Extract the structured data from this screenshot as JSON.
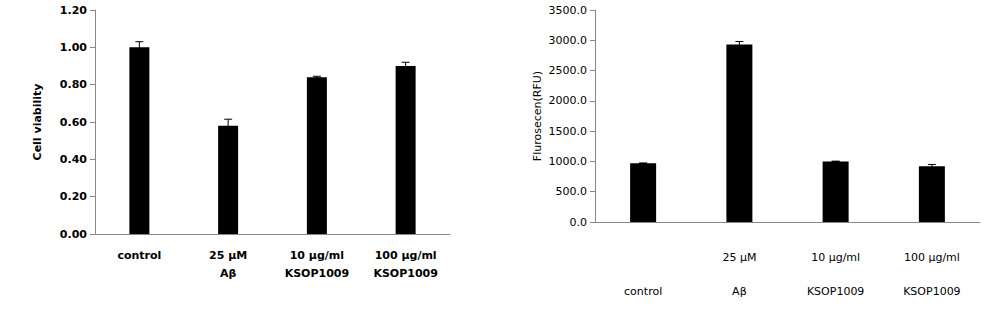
{
  "chart_data": [
    {
      "type": "bar",
      "y_label": "Cell viability",
      "categories": [
        "control",
        "25 μM\nAβ",
        "10 μg/ml\nKSOP1009",
        "100 μg/ml\nKSOP1009"
      ],
      "values": [
        1.0,
        0.58,
        0.84,
        0.9
      ],
      "errors": [
        0.03,
        0.035,
        0.005,
        0.02
      ],
      "color": "#000000",
      "ylim": [
        0,
        1.2
      ],
      "yticks": [
        {
          "value": 0,
          "label": "0.00"
        },
        {
          "value": 0.2,
          "label": "0.20"
        },
        {
          "value": 0.4,
          "label": "0.40"
        },
        {
          "value": 0.6,
          "label": "0.60"
        },
        {
          "value": 0.8,
          "label": "0.80"
        },
        {
          "value": 1.0,
          "label": "1.00"
        },
        {
          "value": 1.2,
          "label": "1.20"
        }
      ],
      "grid": false
    },
    {
      "type": "bar",
      "y_label": "Flurosecen(RFU)",
      "categories": [
        "control",
        "25 μM\nAβ",
        "10 μg/ml\nKSOP1009",
        "100 μg/ml\nKSOP1009"
      ],
      "values": [
        970,
        2930,
        1000,
        920
      ],
      "errors": [
        5,
        50,
        5,
        30
      ],
      "color": "#000000",
      "ylim": [
        0,
        3500
      ],
      "yticks": [
        {
          "value": 0,
          "label": "0.0"
        },
        {
          "value": 500,
          "label": "500.0"
        },
        {
          "value": 1000,
          "label": "1000.0"
        },
        {
          "value": 1500,
          "label": "1500.0"
        },
        {
          "value": 2000,
          "label": "2000.0"
        },
        {
          "value": 2500,
          "label": "2500.0"
        },
        {
          "value": 3000,
          "label": "3000.0"
        },
        {
          "value": 3500,
          "label": "3500.0"
        }
      ],
      "grid": false
    }
  ]
}
